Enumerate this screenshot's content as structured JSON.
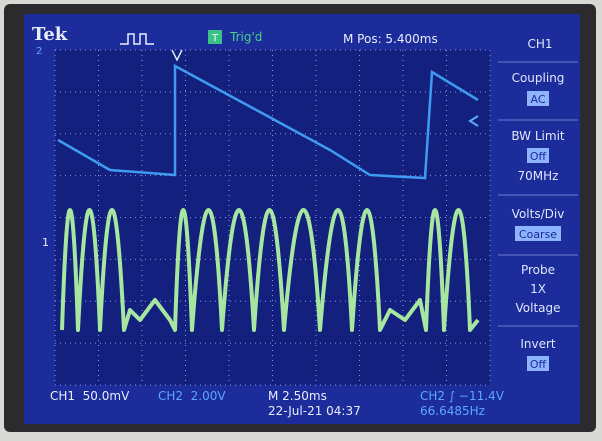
{
  "header": {
    "brand": "Tek",
    "trigger_icon": "T",
    "trigger_status": "Trig'd",
    "position": "M Pos: 5.400ms"
  },
  "markers": {
    "ch1": "1",
    "ch2": "2"
  },
  "menu": {
    "title": "CH1",
    "items": [
      {
        "label": "Coupling",
        "value": "AC"
      },
      {
        "label": "BW Limit",
        "value": "Off",
        "extra": "70MHz"
      },
      {
        "label": "Volts/Div",
        "value": "Coarse"
      },
      {
        "label": "Probe",
        "value": "1X",
        "extra": "Voltage"
      },
      {
        "label": "Invert",
        "value": "Off"
      }
    ]
  },
  "footer": {
    "ch1": "CH1  50.0mV",
    "ch2": "CH2  2.00V",
    "timebase": "M 2.50ms",
    "date": "22-Jul-21 04:37",
    "trigger": "CH2 ∫ −11.4V",
    "frequency": "66.6485Hz"
  }
}
